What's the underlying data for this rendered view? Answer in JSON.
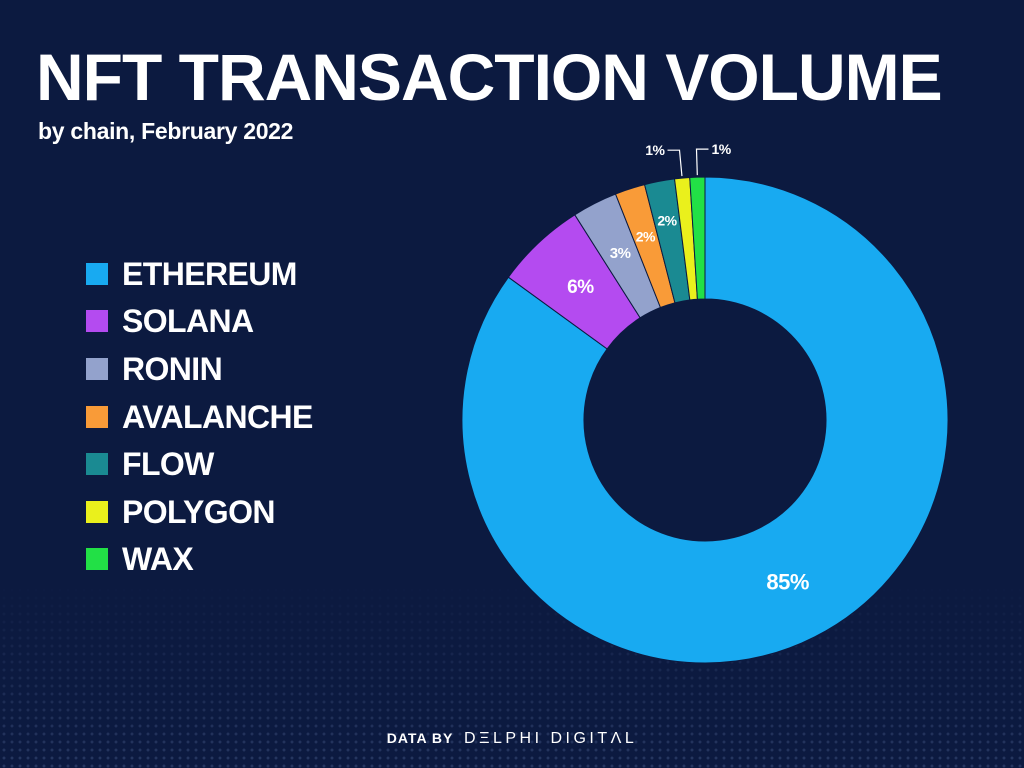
{
  "chart_data": {
    "type": "pie",
    "donut": true,
    "title": "NFT TRANSACTION VOLUME",
    "subtitle": "by chain, February 2022",
    "legend_position": "left",
    "slices": [
      {
        "name": "ETHEREUM",
        "value": 85,
        "label": "85%",
        "color": "#18aaf1"
      },
      {
        "name": "SOLANA",
        "value": 6,
        "label": "6%",
        "color": "#b44bf0"
      },
      {
        "name": "RONIN",
        "value": 3,
        "label": "3%",
        "color": "#93a2cc"
      },
      {
        "name": "AVALANCHE",
        "value": 2,
        "label": "2%",
        "color": "#f99b38"
      },
      {
        "name": "FLOW",
        "value": 2,
        "label": "2%",
        "color": "#1a8a92"
      },
      {
        "name": "POLYGON",
        "value": 1,
        "label": "1%",
        "color": "#eaf01c"
      },
      {
        "name": "WAX",
        "value": 1,
        "label": "1%",
        "color": "#22e046"
      }
    ]
  },
  "footer": {
    "prefix": "DATA BY",
    "brand": "DΞLPHI DIGITΛL"
  }
}
